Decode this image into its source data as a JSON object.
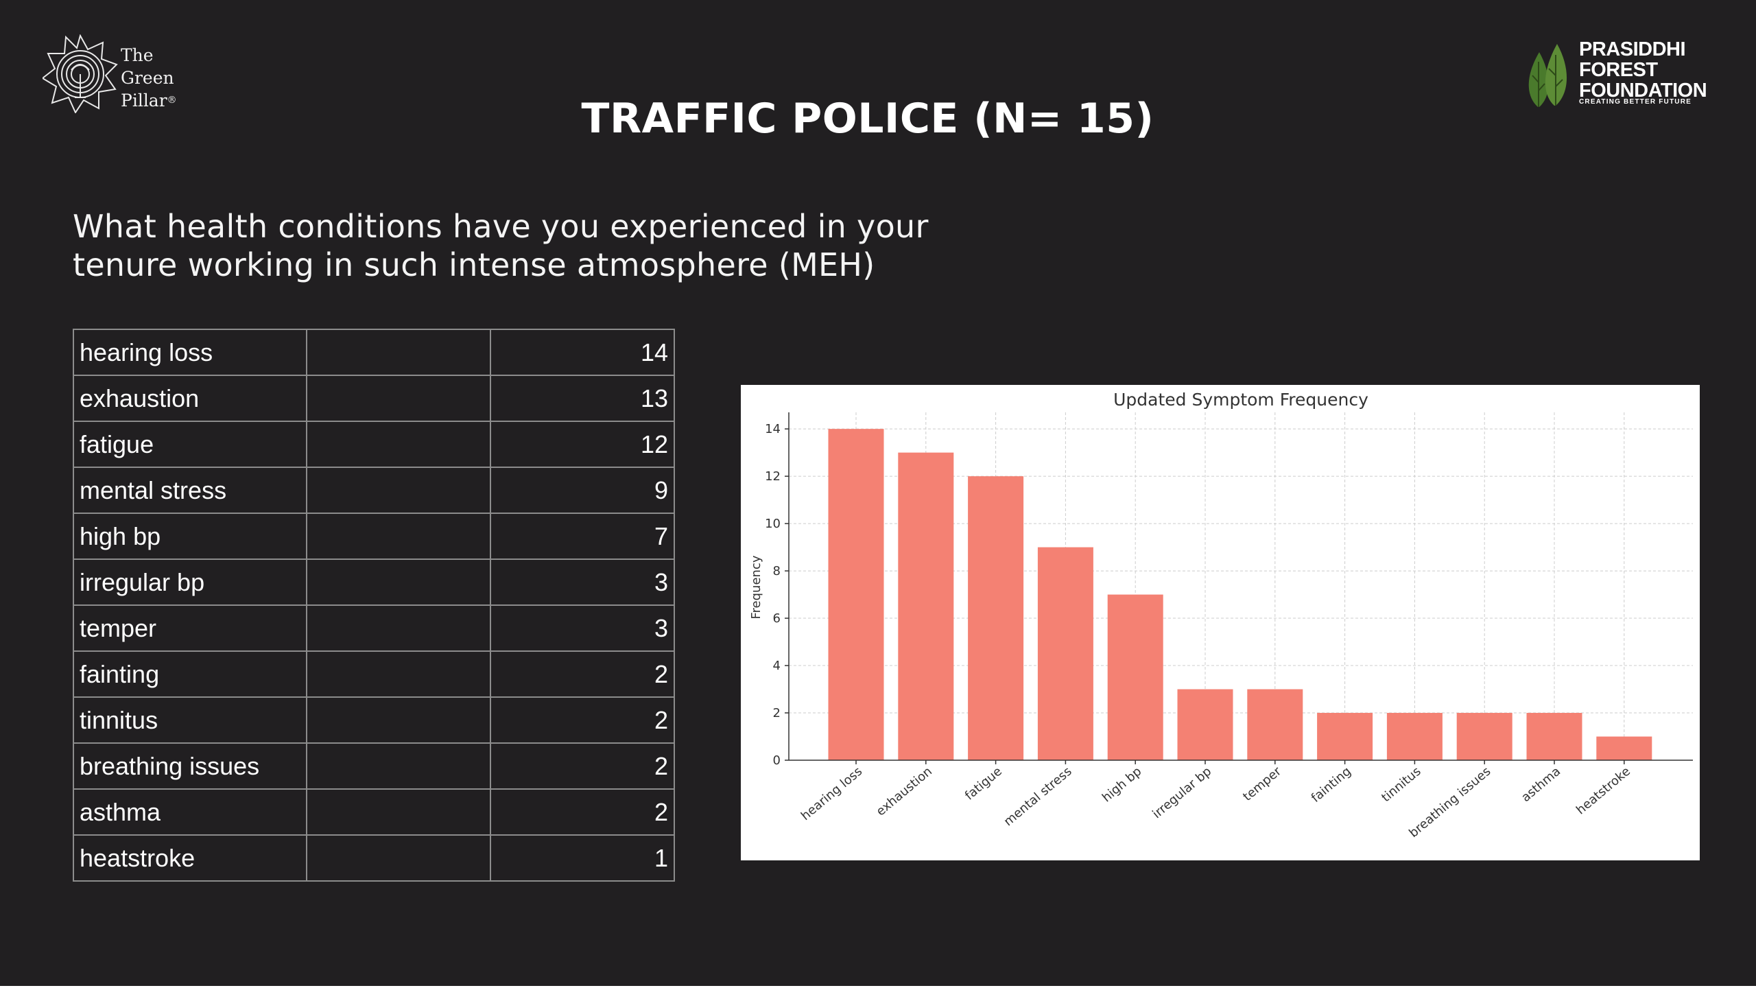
{
  "logos": {
    "green_pillar": {
      "line1": "The",
      "line2": "Green",
      "line3": "Pillar",
      "mark": "®"
    },
    "prasiddhi": {
      "line1": "PRASIDDHI",
      "line2": "FOREST",
      "line3": "FOUNDATION",
      "tagline": "CREATING BETTER FUTURE",
      "leaf_color": "#4f7f2f"
    }
  },
  "header": {
    "title": "TRAFFIC POLICE (N= 15)"
  },
  "question": {
    "line1": "What health conditions have you experienced in your",
    "line2": "tenure working in such intense atmosphere (MEH)"
  },
  "table": {
    "rows": [
      {
        "label": "hearing loss",
        "value": "14"
      },
      {
        "label": "exhaustion",
        "value": "13"
      },
      {
        "label": "fatigue",
        "value": "12"
      },
      {
        "label": "mental stress",
        "value": "9"
      },
      {
        "label": "high bp",
        "value": "7"
      },
      {
        "label": "irregular bp",
        "value": "3"
      },
      {
        "label": "temper",
        "value": "3"
      },
      {
        "label": "fainting",
        "value": "2"
      },
      {
        "label": "tinnitus",
        "value": "2"
      },
      {
        "label": "breathing issues",
        "value": "2"
      },
      {
        "label": "asthma",
        "value": "2"
      },
      {
        "label": "heatstroke",
        "value": "1"
      }
    ]
  },
  "chart_data": {
    "type": "bar",
    "title": "Updated Symptom Frequency",
    "xlabel": "",
    "ylabel": "Frequency",
    "categories": [
      "hearing loss",
      "exhaustion",
      "fatigue",
      "mental stress",
      "high bp",
      "irregular bp",
      "temper",
      "fainting",
      "tinnitus",
      "breathing issues",
      "asthma",
      "heatstroke"
    ],
    "values": [
      14,
      13,
      12,
      9,
      7,
      3,
      3,
      2,
      2,
      2,
      2,
      1
    ],
    "ylim": [
      0,
      14.7
    ],
    "yticks": [
      0,
      2,
      4,
      6,
      8,
      10,
      12,
      14
    ],
    "grid": true,
    "bar_color": "#f48173"
  }
}
